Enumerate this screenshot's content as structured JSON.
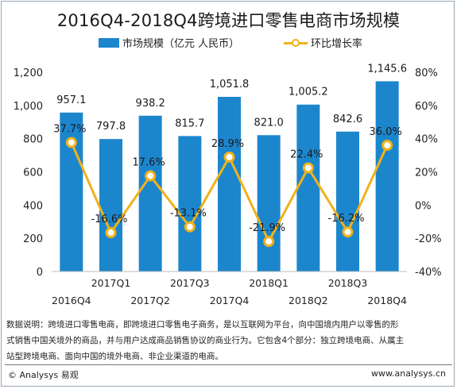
{
  "title": "2016Q4-2018Q4跨境进口零售电商市场规模",
  "legend": {
    "bar_label": "市场规模（亿元 人民币）",
    "line_label": "环比增长率"
  },
  "colors": {
    "bar": "#1c86cd",
    "line": "#f0b21a"
  },
  "chart_data": {
    "type": "bar",
    "title": "2016Q4-2018Q4跨境进口零售电商市场规模",
    "xlabel": "",
    "ylabel": "",
    "categories": [
      "2016Q4",
      "2017Q1",
      "2017Q2",
      "2017Q3",
      "2017Q4",
      "2018Q1",
      "2018Q2",
      "2018Q3",
      "2018Q4"
    ],
    "series": [
      {
        "name": "市场规模（亿元 人民币）",
        "type": "bar",
        "values": [
          957.1,
          797.8,
          938.2,
          815.7,
          1051.8,
          821.0,
          1005.2,
          842.6,
          1145.6
        ],
        "labels": [
          "957.1",
          "797.8",
          "938.2",
          "815.7",
          "1,051.8",
          "821.0",
          "1,005.2",
          "842.6",
          "1,145.6"
        ]
      },
      {
        "name": "环比增长率",
        "type": "line",
        "axis": "right",
        "values": [
          37.7,
          -16.6,
          17.6,
          -13.1,
          28.9,
          -21.9,
          22.4,
          -16.2,
          36.0
        ],
        "labels": [
          "37.7%",
          "-16.6%",
          "17.6%",
          "-13.1%",
          "28.9%",
          "-21.9%",
          "22.4%",
          "-16.2%",
          "36.0%"
        ]
      }
    ],
    "ylim": [
      0,
      1200
    ],
    "y_ticks": [
      "0",
      "200",
      "400",
      "600",
      "800",
      "1,000",
      "1,200"
    ],
    "y2lim": [
      -40,
      80
    ],
    "y2_ticks": [
      "-40%",
      "-20%",
      "0%",
      "20%",
      "40%",
      "60%",
      "80%"
    ],
    "grid": false,
    "legend_position": "top-center"
  },
  "note": {
    "lines": [
      "数据说明：跨境进口零售电商，即跨境进口零售电子商务，是以互联网为平台，向中国境内用户以零售的形",
      "式销售中国关境外的商品，并与用户达成商品销售协议的商业行为。它包含4个部分：独立跨境电商、从属主",
      "站型跨境电商、面向中国的境外电商、非企业渠道的电商。"
    ]
  },
  "footer": {
    "left": "© Analysys 易观",
    "right": "www.analysys.cn"
  }
}
